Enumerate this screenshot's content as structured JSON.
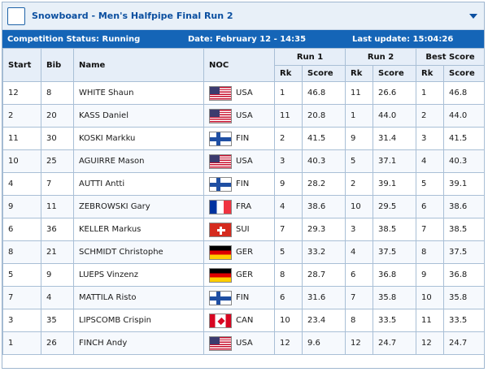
{
  "header": {
    "title": "Snowboard - Men's Halfpipe Final Run 2"
  },
  "status": {
    "competition": "Competition Status: Running",
    "date": "Date: February 12 - 14:35",
    "last_update": "Last update: 15:04:26"
  },
  "columns": {
    "start": "Start",
    "bib": "Bib",
    "name": "Name",
    "noc": "NOC",
    "run1": "Run 1",
    "run2": "Run 2",
    "best": "Best Score",
    "rk": "Rk",
    "score": "Score"
  },
  "rows": [
    {
      "start": "12",
      "bib": "8",
      "name": "WHITE Shaun",
      "noc": "USA",
      "flag": "usa-flag-icon",
      "r1rk": "1",
      "r1score": "46.8",
      "r2rk": "11",
      "r2score": "26.6",
      "brk": "1",
      "bscore": "46.8"
    },
    {
      "start": "2",
      "bib": "20",
      "name": "KASS Daniel",
      "noc": "USA",
      "flag": "usa-flag-icon",
      "r1rk": "11",
      "r1score": "20.8",
      "r2rk": "1",
      "r2score": "44.0",
      "brk": "2",
      "bscore": "44.0"
    },
    {
      "start": "11",
      "bib": "30",
      "name": "KOSKI Markku",
      "noc": "FIN",
      "flag": "fin-flag-icon",
      "r1rk": "2",
      "r1score": "41.5",
      "r2rk": "9",
      "r2score": "31.4",
      "brk": "3",
      "bscore": "41.5"
    },
    {
      "start": "10",
      "bib": "25",
      "name": "AGUIRRE Mason",
      "noc": "USA",
      "flag": "usa-flag-icon",
      "r1rk": "3",
      "r1score": "40.3",
      "r2rk": "5",
      "r2score": "37.1",
      "brk": "4",
      "bscore": "40.3"
    },
    {
      "start": "4",
      "bib": "7",
      "name": "AUTTI Antti",
      "noc": "FIN",
      "flag": "fin-flag-icon",
      "r1rk": "9",
      "r1score": "28.2",
      "r2rk": "2",
      "r2score": "39.1",
      "brk": "5",
      "bscore": "39.1"
    },
    {
      "start": "9",
      "bib": "11",
      "name": "ZEBROWSKI Gary",
      "noc": "FRA",
      "flag": "fra-flag-icon",
      "r1rk": "4",
      "r1score": "38.6",
      "r2rk": "10",
      "r2score": "29.5",
      "brk": "6",
      "bscore": "38.6"
    },
    {
      "start": "6",
      "bib": "36",
      "name": "KELLER Markus",
      "noc": "SUI",
      "flag": "sui-flag-icon",
      "r1rk": "7",
      "r1score": "29.3",
      "r2rk": "3",
      "r2score": "38.5",
      "brk": "7",
      "bscore": "38.5"
    },
    {
      "start": "8",
      "bib": "21",
      "name": "SCHMIDT Christophe",
      "noc": "GER",
      "flag": "ger-flag-icon",
      "r1rk": "5",
      "r1score": "33.2",
      "r2rk": "4",
      "r2score": "37.5",
      "brk": "8",
      "bscore": "37.5"
    },
    {
      "start": "5",
      "bib": "9",
      "name": "LUEPS Vinzenz",
      "noc": "GER",
      "flag": "ger-flag-icon",
      "r1rk": "8",
      "r1score": "28.7",
      "r2rk": "6",
      "r2score": "36.8",
      "brk": "9",
      "bscore": "36.8"
    },
    {
      "start": "7",
      "bib": "4",
      "name": "MATTILA Risto",
      "noc": "FIN",
      "flag": "fin-flag-icon",
      "r1rk": "6",
      "r1score": "31.6",
      "r2rk": "7",
      "r2score": "35.8",
      "brk": "10",
      "bscore": "35.8"
    },
    {
      "start": "3",
      "bib": "35",
      "name": "LIPSCOMB Crispin",
      "noc": "CAN",
      "flag": "can-flag-icon",
      "r1rk": "10",
      "r1score": "23.4",
      "r2rk": "8",
      "r2score": "33.5",
      "brk": "11",
      "bscore": "33.5"
    },
    {
      "start": "1",
      "bib": "26",
      "name": "FINCH Andy",
      "noc": "USA",
      "flag": "usa-flag-icon",
      "r1rk": "12",
      "r1score": "9.6",
      "r2rk": "12",
      "r2score": "24.7",
      "brk": "12",
      "bscore": "24.7"
    }
  ]
}
